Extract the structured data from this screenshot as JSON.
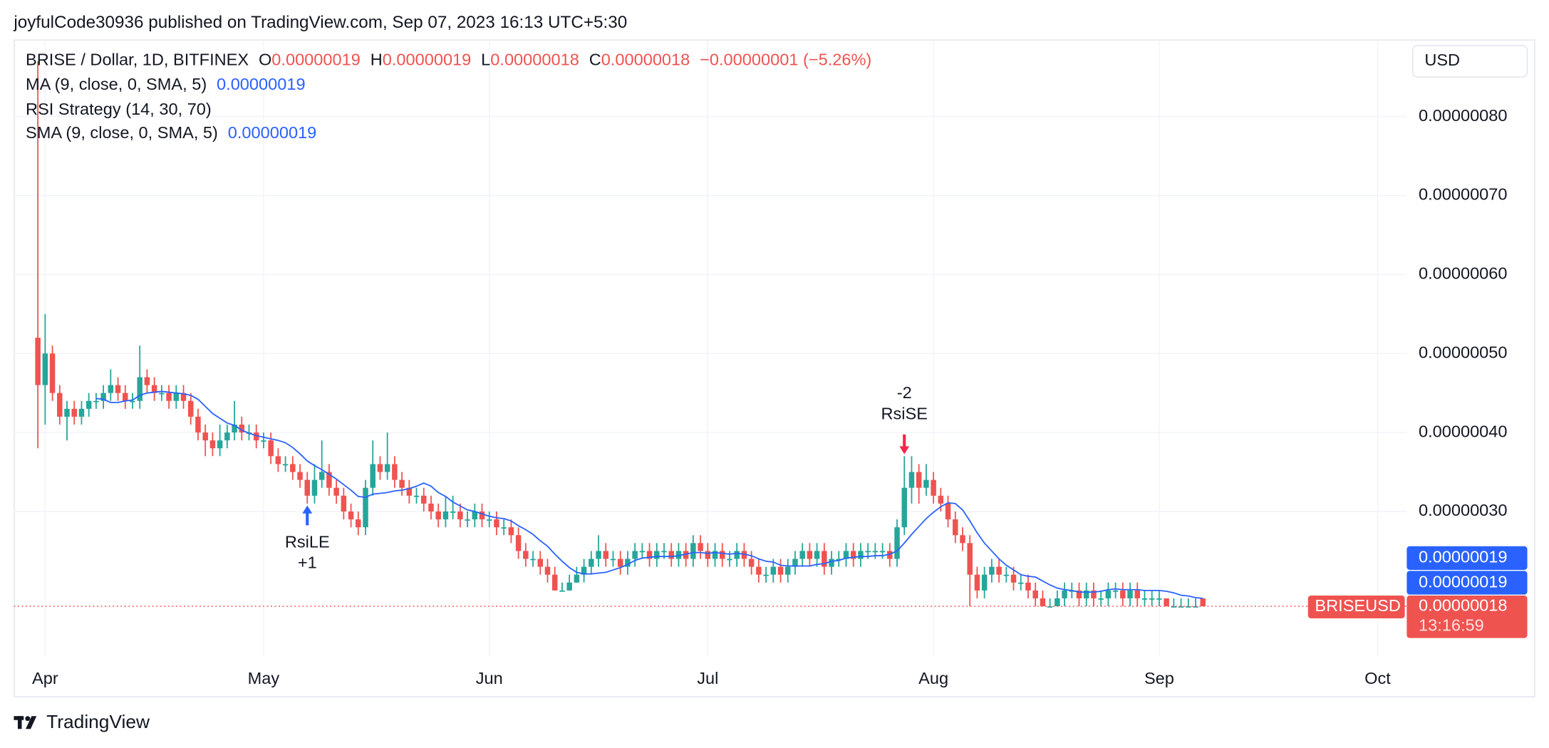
{
  "header": {
    "publisher": "joyfulCode30936 published on TradingView.com, Sep 07, 2023 16:13 UTC+5:30"
  },
  "chart_data": {
    "type": "candlestick",
    "symbol": "BRISE / Dollar, 1D, BITFINEX",
    "ohlc_legend": [
      {
        "key": "O",
        "value": "0.00000019"
      },
      {
        "key": "H",
        "value": "0.00000019"
      },
      {
        "key": "L",
        "value": "0.00000018"
      },
      {
        "key": "C",
        "value": "0.00000018"
      }
    ],
    "change": "−0.00000001 (−5.26%)",
    "indicators": [
      {
        "text": "MA (9, close, 0, SMA, 5)",
        "value": "0.00000019"
      },
      {
        "text": "RSI Strategy (14, 30, 70)"
      },
      {
        "text": "SMA (9, close, 0, SMA, 5)",
        "value": "0.00000019"
      }
    ],
    "currency": "USD",
    "xlim": [
      -3.3,
      188
    ],
    "xticks": [
      {
        "value": 1,
        "label": "Apr"
      },
      {
        "value": 31,
        "label": "May"
      },
      {
        "value": 62,
        "label": "Jun"
      },
      {
        "value": 92,
        "label": "Jul"
      },
      {
        "value": 123,
        "label": "Aug"
      },
      {
        "value": 154,
        "label": "Sep"
      },
      {
        "value": 184,
        "label": "Oct"
      }
    ],
    "ylim": [
      1.16e-07,
      8.975e-07
    ],
    "yticks": [
      {
        "value": 3e-07,
        "label": "0.00000030"
      },
      {
        "value": 4e-07,
        "label": "0.00000040"
      },
      {
        "value": 5e-07,
        "label": "0.00000050"
      },
      {
        "value": 6e-07,
        "label": "0.00000060"
      },
      {
        "value": 7e-07,
        "label": "0.00000070"
      },
      {
        "value": 8e-07,
        "label": "0.00000080"
      }
    ],
    "grid": true,
    "up_color": "#26a69a",
    "down_color": "#ef5350",
    "open": [
      5.2e-07,
      4.6e-07,
      5e-07,
      4.5e-07,
      4.2e-07,
      4.3e-07,
      4.2e-07,
      4.3e-07,
      4.4e-07,
      4.4e-07,
      4.5e-07,
      4.6e-07,
      4.5e-07,
      4.4e-07,
      4.4e-07,
      4.7e-07,
      4.6e-07,
      4.5e-07,
      4.5e-07,
      4.4e-07,
      4.5e-07,
      4.4e-07,
      4.2e-07,
      4e-07,
      3.9e-07,
      3.8e-07,
      3.9e-07,
      4e-07,
      4.1e-07,
      4e-07,
      4e-07,
      3.9e-07,
      3.9e-07,
      3.7e-07,
      3.6e-07,
      3.6e-07,
      3.5e-07,
      3.4e-07,
      3.2e-07,
      3.4e-07,
      3.5e-07,
      3.3e-07,
      3.2e-07,
      3e-07,
      2.9e-07,
      2.8e-07,
      3.3e-07,
      3.6e-07,
      3.5e-07,
      3.6e-07,
      3.4e-07,
      3.3e-07,
      3.2e-07,
      3.2e-07,
      3.1e-07,
      3e-07,
      2.9e-07,
      3e-07,
      3e-07,
      2.9e-07,
      2.9e-07,
      3e-07,
      2.9e-07,
      2.9e-07,
      2.8e-07,
      2.8e-07,
      2.7e-07,
      2.5e-07,
      2.4e-07,
      2.4e-07,
      2.3e-07,
      2.2e-07,
      2e-07,
      2e-07,
      2.1e-07,
      2.2e-07,
      2.3e-07,
      2.4e-07,
      2.5e-07,
      2.4e-07,
      2.4e-07,
      2.3e-07,
      2.4e-07,
      2.5e-07,
      2.5e-07,
      2.4e-07,
      2.5e-07,
      2.5e-07,
      2.4e-07,
      2.5e-07,
      2.4e-07,
      2.6e-07,
      2.5e-07,
      2.4e-07,
      2.5e-07,
      2.4e-07,
      2.4e-07,
      2.5e-07,
      2.4e-07,
      2.3e-07,
      2.2e-07,
      2.2e-07,
      2.3e-07,
      2.2e-07,
      2.3e-07,
      2.4e-07,
      2.5e-07,
      2.4e-07,
      2.5e-07,
      2.3e-07,
      2.4e-07,
      2.4e-07,
      2.5e-07,
      2.4e-07,
      2.5e-07,
      2.5e-07,
      2.5e-07,
      2.5e-07,
      2.4e-07,
      2.8e-07,
      3.3e-07,
      3.5e-07,
      3.3e-07,
      3.4e-07,
      3.2e-07,
      3.1e-07,
      2.9e-07,
      2.7e-07,
      2.6e-07,
      2.2e-07,
      2e-07,
      2.2e-07,
      2.3e-07,
      2.2e-07,
      2.2e-07,
      2.1e-07,
      2.1e-07,
      2e-07,
      1.9e-07,
      1.8e-07,
      1.8e-07,
      1.9e-07,
      2e-07,
      2e-07,
      1.9e-07,
      2e-07,
      1.9e-07,
      1.9e-07,
      2e-07,
      2e-07,
      1.9e-07,
      2e-07,
      1.9e-07,
      1.9e-07,
      1.9e-07,
      1.9e-07,
      1.8e-07,
      1.8e-07,
      1.8e-07,
      1.8e-07,
      1.9e-07
    ],
    "high": [
      8.7e-07,
      5.5e-07,
      5.1e-07,
      4.6e-07,
      4.4e-07,
      4.4e-07,
      4.4e-07,
      4.5e-07,
      4.5e-07,
      4.6e-07,
      4.8e-07,
      4.7e-07,
      4.6e-07,
      4.5e-07,
      5.1e-07,
      4.8e-07,
      4.7e-07,
      4.6e-07,
      4.6e-07,
      4.6e-07,
      4.6e-07,
      4.5e-07,
      4.3e-07,
      4.1e-07,
      4e-07,
      4.1e-07,
      4.1e-07,
      4.4e-07,
      4.2e-07,
      4.1e-07,
      4.1e-07,
      4e-07,
      4e-07,
      3.8e-07,
      3.7e-07,
      3.7e-07,
      3.6e-07,
      3.5e-07,
      3.6e-07,
      3.9e-07,
      3.6e-07,
      3.4e-07,
      3.3e-07,
      3.1e-07,
      3e-07,
      3.4e-07,
      3.9e-07,
      3.7e-07,
      4e-07,
      3.7e-07,
      3.5e-07,
      3.4e-07,
      3.3e-07,
      3.3e-07,
      3.2e-07,
      3.1e-07,
      3.2e-07,
      3.2e-07,
      3.1e-07,
      3e-07,
      3.1e-07,
      3.1e-07,
      3e-07,
      3e-07,
      2.9e-07,
      2.9e-07,
      2.8e-07,
      2.6e-07,
      2.5e-07,
      2.5e-07,
      2.4e-07,
      2.3e-07,
      2.1e-07,
      2.2e-07,
      2.3e-07,
      2.4e-07,
      2.5e-07,
      2.7e-07,
      2.6e-07,
      2.5e-07,
      2.5e-07,
      2.5e-07,
      2.6e-07,
      2.6e-07,
      2.6e-07,
      2.6e-07,
      2.6e-07,
      2.6e-07,
      2.6e-07,
      2.6e-07,
      2.7e-07,
      2.7e-07,
      2.6e-07,
      2.6e-07,
      2.6e-07,
      2.5e-07,
      2.6e-07,
      2.6e-07,
      2.5e-07,
      2.4e-07,
      2.3e-07,
      2.4e-07,
      2.4e-07,
      2.4e-07,
      2.5e-07,
      2.6e-07,
      2.6e-07,
      2.6e-07,
      2.6e-07,
      2.5e-07,
      2.5e-07,
      2.6e-07,
      2.6e-07,
      2.6e-07,
      2.6e-07,
      2.6e-07,
      2.6e-07,
      2.6e-07,
      2.9e-07,
      3.7e-07,
      3.7e-07,
      3.6e-07,
      3.6e-07,
      3.5e-07,
      3.3e-07,
      3.2e-07,
      3e-07,
      2.8e-07,
      2.7e-07,
      2.3e-07,
      2.3e-07,
      2.4e-07,
      2.4e-07,
      2.3e-07,
      2.3e-07,
      2.2e-07,
      2.2e-07,
      2.1e-07,
      2e-07,
      1.9e-07,
      2e-07,
      2.1e-07,
      2.1e-07,
      2.1e-07,
      2.1e-07,
      2.1e-07,
      2e-07,
      2.1e-07,
      2.1e-07,
      2.1e-07,
      2.1e-07,
      2.1e-07,
      2e-07,
      2e-07,
      2e-07,
      1.9e-07,
      1.9e-07,
      1.9e-07,
      1.9e-07,
      1.9e-07,
      1.9e-07
    ],
    "low": [
      3.8e-07,
      4.1e-07,
      4.4e-07,
      4.1e-07,
      3.9e-07,
      4.1e-07,
      4.1e-07,
      4.2e-07,
      4.3e-07,
      4.3e-07,
      4.4e-07,
      4.4e-07,
      4.3e-07,
      4.3e-07,
      4.3e-07,
      4.5e-07,
      4.4e-07,
      4.4e-07,
      4.3e-07,
      4.3e-07,
      4.3e-07,
      4.1e-07,
      3.9e-07,
      3.7e-07,
      3.7e-07,
      3.7e-07,
      3.8e-07,
      3.9e-07,
      3.9e-07,
      3.9e-07,
      3.8e-07,
      3.8e-07,
      3.6e-07,
      3.5e-07,
      3.5e-07,
      3.4e-07,
      3.3e-07,
      3.1e-07,
      3.1e-07,
      3.3e-07,
      3.2e-07,
      3.1e-07,
      2.9e-07,
      2.8e-07,
      2.7e-07,
      2.7e-07,
      3.2e-07,
      3.4e-07,
      3.4e-07,
      3.3e-07,
      3.2e-07,
      3.1e-07,
      3.1e-07,
      3e-07,
      2.9e-07,
      2.8e-07,
      2.8e-07,
      2.9e-07,
      2.8e-07,
      2.8e-07,
      2.8e-07,
      2.8e-07,
      2.8e-07,
      2.7e-07,
      2.7e-07,
      2.6e-07,
      2.4e-07,
      2.3e-07,
      2.3e-07,
      2.2e-07,
      2.1e-07,
      2e-07,
      2e-07,
      2e-07,
      2.1e-07,
      2.1e-07,
      2.2e-07,
      2.3e-07,
      2.3e-07,
      2.3e-07,
      2.2e-07,
      2.2e-07,
      2.3e-07,
      2.4e-07,
      2.3e-07,
      2.3e-07,
      2.4e-07,
      2.3e-07,
      2.3e-07,
      2.3e-07,
      2.3e-07,
      2.4e-07,
      2.3e-07,
      2.3e-07,
      2.3e-07,
      2.3e-07,
      2.3e-07,
      2.3e-07,
      2.2e-07,
      2.1e-07,
      2.1e-07,
      2.1e-07,
      2.1e-07,
      2.1e-07,
      2.2e-07,
      2.3e-07,
      2.3e-07,
      2.3e-07,
      2.2e-07,
      2.2e-07,
      2.3e-07,
      2.3e-07,
      2.3e-07,
      2.3e-07,
      2.4e-07,
      2.4e-07,
      2.4e-07,
      2.3e-07,
      2.3e-07,
      2.7e-07,
      3.1e-07,
      3.1e-07,
      3.2e-07,
      3.1e-07,
      3e-07,
      2.8e-07,
      2.6e-07,
      2.5e-07,
      1.8e-07,
      1.9e-07,
      1.9e-07,
      2.1e-07,
      2.1e-07,
      2.1e-07,
      2e-07,
      2e-07,
      1.9e-07,
      1.8e-07,
      1.8e-07,
      1.8e-07,
      1.8e-07,
      1.8e-07,
      1.9e-07,
      1.8e-07,
      1.8e-07,
      1.8e-07,
      1.8e-07,
      1.8e-07,
      1.9e-07,
      1.8e-07,
      1.8e-07,
      1.8e-07,
      1.8e-07,
      1.8e-07,
      1.8e-07,
      1.8e-07,
      1.8e-07,
      1.8e-07,
      1.8e-07,
      1.8e-07,
      1.8e-07
    ],
    "close": [
      4.6e-07,
      5e-07,
      4.5e-07,
      4.2e-07,
      4.3e-07,
      4.2e-07,
      4.3e-07,
      4.4e-07,
      4.4e-07,
      4.5e-07,
      4.6e-07,
      4.5e-07,
      4.4e-07,
      4.4e-07,
      4.7e-07,
      4.6e-07,
      4.5e-07,
      4.5e-07,
      4.4e-07,
      4.5e-07,
      4.4e-07,
      4.2e-07,
      4e-07,
      3.9e-07,
      3.8e-07,
      3.9e-07,
      4e-07,
      4.1e-07,
      4e-07,
      4e-07,
      3.9e-07,
      3.9e-07,
      3.7e-07,
      3.6e-07,
      3.6e-07,
      3.5e-07,
      3.4e-07,
      3.2e-07,
      3.4e-07,
      3.5e-07,
      3.3e-07,
      3.2e-07,
      3e-07,
      2.9e-07,
      2.8e-07,
      3.3e-07,
      3.6e-07,
      3.5e-07,
      3.6e-07,
      3.4e-07,
      3.3e-07,
      3.2e-07,
      3.2e-07,
      3.1e-07,
      3e-07,
      2.9e-07,
      3e-07,
      3e-07,
      2.9e-07,
      2.9e-07,
      3e-07,
      2.9e-07,
      2.9e-07,
      2.8e-07,
      2.8e-07,
      2.7e-07,
      2.5e-07,
      2.4e-07,
      2.4e-07,
      2.3e-07,
      2.2e-07,
      2e-07,
      2e-07,
      2.1e-07,
      2.2e-07,
      2.3e-07,
      2.4e-07,
      2.5e-07,
      2.4e-07,
      2.4e-07,
      2.3e-07,
      2.4e-07,
      2.5e-07,
      2.5e-07,
      2.4e-07,
      2.5e-07,
      2.5e-07,
      2.4e-07,
      2.5e-07,
      2.4e-07,
      2.6e-07,
      2.5e-07,
      2.4e-07,
      2.5e-07,
      2.4e-07,
      2.4e-07,
      2.5e-07,
      2.4e-07,
      2.3e-07,
      2.2e-07,
      2.2e-07,
      2.3e-07,
      2.2e-07,
      2.3e-07,
      2.4e-07,
      2.5e-07,
      2.4e-07,
      2.5e-07,
      2.3e-07,
      2.4e-07,
      2.4e-07,
      2.5e-07,
      2.4e-07,
      2.5e-07,
      2.5e-07,
      2.5e-07,
      2.5e-07,
      2.4e-07,
      2.8e-07,
      3.3e-07,
      3.5e-07,
      3.3e-07,
      3.4e-07,
      3.2e-07,
      3.1e-07,
      2.9e-07,
      2.7e-07,
      2.6e-07,
      2.2e-07,
      2e-07,
      2.2e-07,
      2.3e-07,
      2.2e-07,
      2.2e-07,
      2.1e-07,
      2.1e-07,
      2e-07,
      1.9e-07,
      1.8e-07,
      1.8e-07,
      1.9e-07,
      2e-07,
      2e-07,
      1.9e-07,
      2e-07,
      1.9e-07,
      1.9e-07,
      2e-07,
      2e-07,
      1.9e-07,
      2e-07,
      1.9e-07,
      1.9e-07,
      1.9e-07,
      1.9e-07,
      1.8e-07,
      1.8e-07,
      1.8e-07,
      1.8e-07,
      1.8e-07,
      1.8e-07
    ],
    "ma": {
      "color": "#2962ff",
      "values": [
        null,
        null,
        null,
        null,
        null,
        null,
        null,
        null,
        4.43e-07,
        4.42e-07,
        4.38e-07,
        4.38e-07,
        4.4e-07,
        4.41e-07,
        4.47e-07,
        4.5e-07,
        4.51e-07,
        4.52e-07,
        4.51e-07,
        4.5e-07,
        4.49e-07,
        4.47e-07,
        4.42e-07,
        4.33e-07,
        4.24e-07,
        4.18e-07,
        4.12e-07,
        4.09e-07,
        4.03e-07,
        3.99e-07,
        3.96e-07,
        3.94e-07,
        3.92e-07,
        3.9e-07,
        3.87e-07,
        3.81e-07,
        3.73e-07,
        3.64e-07,
        3.58e-07,
        3.53e-07,
        3.47e-07,
        3.41e-07,
        3.34e-07,
        3.27e-07,
        3.19e-07,
        3.18e-07,
        3.22e-07,
        3.23e-07,
        3.24e-07,
        3.26e-07,
        3.27e-07,
        3.29e-07,
        3.32e-07,
        3.36e-07,
        3.32e-07,
        3.24e-07,
        3.19e-07,
        3.12e-07,
        3.07e-07,
        3.02e-07,
        3e-07,
        2.97e-07,
        2.94e-07,
        2.92e-07,
        2.91e-07,
        2.88e-07,
        2.82e-07,
        2.77e-07,
        2.71e-07,
        2.63e-07,
        2.56e-07,
        2.46e-07,
        2.37e-07,
        2.29e-07,
        2.23e-07,
        2.21e-07,
        2.21e-07,
        2.22e-07,
        2.23e-07,
        2.26e-07,
        2.29e-07,
        2.33e-07,
        2.38e-07,
        2.41e-07,
        2.42e-07,
        2.43e-07,
        2.43e-07,
        2.43e-07,
        2.44e-07,
        2.46e-07,
        2.48e-07,
        2.48e-07,
        2.47e-07,
        2.48e-07,
        2.47e-07,
        2.46e-07,
        2.47e-07,
        2.46e-07,
        2.44e-07,
        2.4e-07,
        2.37e-07,
        2.36e-07,
        2.32e-07,
        2.31e-07,
        2.31e-07,
        2.31e-07,
        2.31e-07,
        2.33e-07,
        2.34e-07,
        2.37e-07,
        2.38e-07,
        2.41e-07,
        2.42e-07,
        2.43e-07,
        2.43e-07,
        2.44e-07,
        2.44e-07,
        2.46e-07,
        2.5e-07,
        2.6e-07,
        2.71e-07,
        2.81e-07,
        2.91e-07,
        2.99e-07,
        3.06e-07,
        3.11e-07,
        3.1e-07,
        3.02e-07,
        2.88e-07,
        2.73e-07,
        2.6e-07,
        2.5e-07,
        2.4e-07,
        2.32e-07,
        2.26e-07,
        2.2e-07,
        2.18e-07,
        2.17e-07,
        2.12e-07,
        2.07e-07,
        2.03e-07,
        2.01e-07,
        2e-07,
        1.98e-07,
        1.98e-07,
        1.98e-07,
        1.99e-07,
        2.01e-07,
        2.02e-07,
        2.01e-07,
        2.01e-07,
        2.01e-07,
        2e-07,
        2e-07,
        2e-07,
        1.99e-07,
        1.97e-07,
        1.94e-07,
        1.93e-07,
        1.91e-07,
        1.9e-07
      ]
    },
    "annotations": [
      {
        "x": 37,
        "side": "below",
        "color": "#2962ff",
        "lines": [
          "RsiLE",
          "+1"
        ]
      },
      {
        "x": 119,
        "side": "above",
        "color": "#f7254f",
        "lines": [
          "-2",
          "RsiSE"
        ]
      }
    ],
    "ma_tags": [
      "0.00000019",
      "0.00000019"
    ],
    "last_price": {
      "symbol": "BRISEUSD",
      "label": "0.00000018",
      "countdown": "13:16:59"
    }
  },
  "footer": {
    "brand": "TradingView"
  }
}
